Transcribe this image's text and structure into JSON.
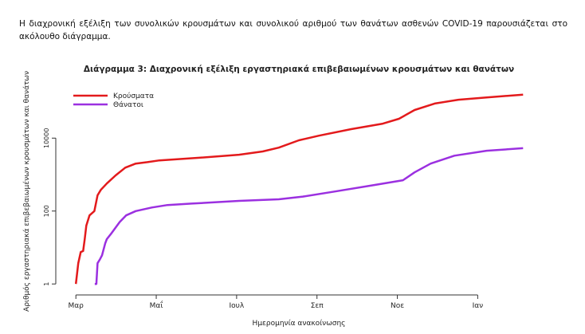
{
  "paragraph": "Η διαχρονική εξέλιξη των συνολικών κρουσμάτων και συνολικού αριθμού των θανάτων ασθενών COVID-19 παρουσιάζεται στο ακόλουθο διάγραμμα.",
  "chart_data": {
    "type": "line",
    "title": "Διάγραμμα 3: Διαχρονική εξέλιξη εργαστηριακά επιβεβαιωμένων κρουσμάτων και θανάτων",
    "xlabel": "Ημερομηνία ανακοίνωσης",
    "ylabel": "Αριθμός εργαστηριακά επιβεβαιωμένων κρουσμάτων και θανάτων",
    "log_scale_y": true,
    "legend": "top-left",
    "xlim": [
      -0.5,
      11.5
    ],
    "xticks": [
      {
        "value": 0,
        "label": "Μαρ"
      },
      {
        "value": 2,
        "label": "Μαΐ"
      },
      {
        "value": 4,
        "label": "Ιουλ"
      },
      {
        "value": 6,
        "label": "Σεπ"
      },
      {
        "value": 8,
        "label": "Νοε"
      },
      {
        "value": 10,
        "label": "Ιαν"
      }
    ],
    "ylim": [
      0.5,
      400000
    ],
    "yticks": [
      1,
      100,
      10000
    ],
    "series": [
      {
        "name": "Κρούσματα",
        "color": "#e31a1c",
        "x": [
          0,
          0.06,
          0.12,
          0.18,
          0.22,
          0.26,
          0.34,
          0.46,
          0.54,
          0.62,
          0.77,
          0.99,
          1.23,
          1.49,
          1.78,
          2.08,
          3.07,
          4.06,
          4.65,
          5.05,
          5.55,
          6.05,
          6.85,
          7.64,
          8.04,
          8.43,
          8.93,
          9.52,
          10.22,
          11.13
        ],
        "values": [
          1,
          3.7,
          7.5,
          8,
          17,
          40,
          76,
          100,
          270,
          380,
          570,
          950,
          1550,
          2000,
          2200,
          2450,
          2900,
          3500,
          4300,
          5500,
          8700,
          11700,
          17600,
          25000,
          34000,
          59000,
          89000,
          113000,
          131000,
          155000
        ]
      },
      {
        "name": "Θάνατοι",
        "color": "#9b30e0",
        "x": [
          0.47,
          0.51,
          0.54,
          0.6,
          0.65,
          0.73,
          0.77,
          0.89,
          1.09,
          1.25,
          1.49,
          1.89,
          2.28,
          2.88,
          4.06,
          5.05,
          5.65,
          6.45,
          7.44,
          8.14,
          8.43,
          8.83,
          9.42,
          10.22,
          11.13
        ],
        "values": [
          1,
          1,
          3.7,
          4.8,
          6.1,
          13,
          17,
          25,
          50,
          76,
          100,
          125,
          146,
          160,
          190,
          210,
          250,
          345,
          520,
          700,
          1150,
          2000,
          3300,
          4500,
          5300
        ]
      }
    ]
  }
}
